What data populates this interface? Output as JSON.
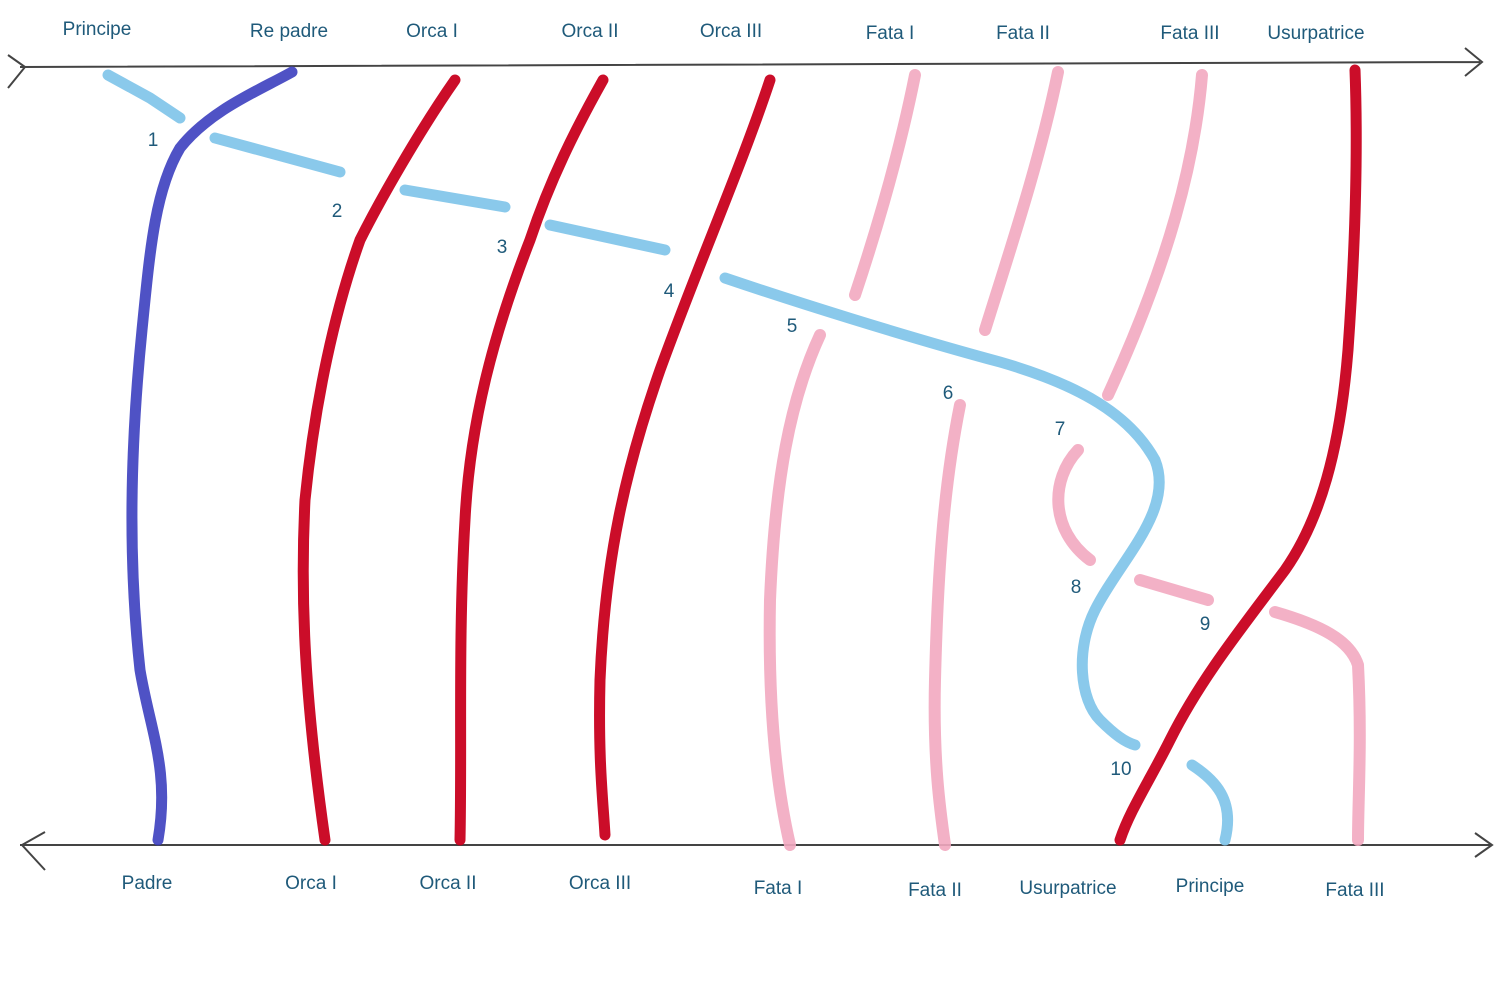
{
  "top_labels": [
    "Principe",
    "Re padre",
    "Orca I",
    "Orca II",
    "Orca III",
    "Fata I",
    "Fata II",
    "Fata III",
    "Usurpatrice"
  ],
  "bottom_labels": [
    "Padre",
    "Orca I",
    "Orca II",
    "Orca III",
    "Fata I",
    "Fata II",
    "Usurpatrice",
    "Principe",
    "Fata III"
  ],
  "crossings": [
    1,
    2,
    3,
    4,
    5,
    6,
    7,
    8,
    9,
    10
  ]
}
